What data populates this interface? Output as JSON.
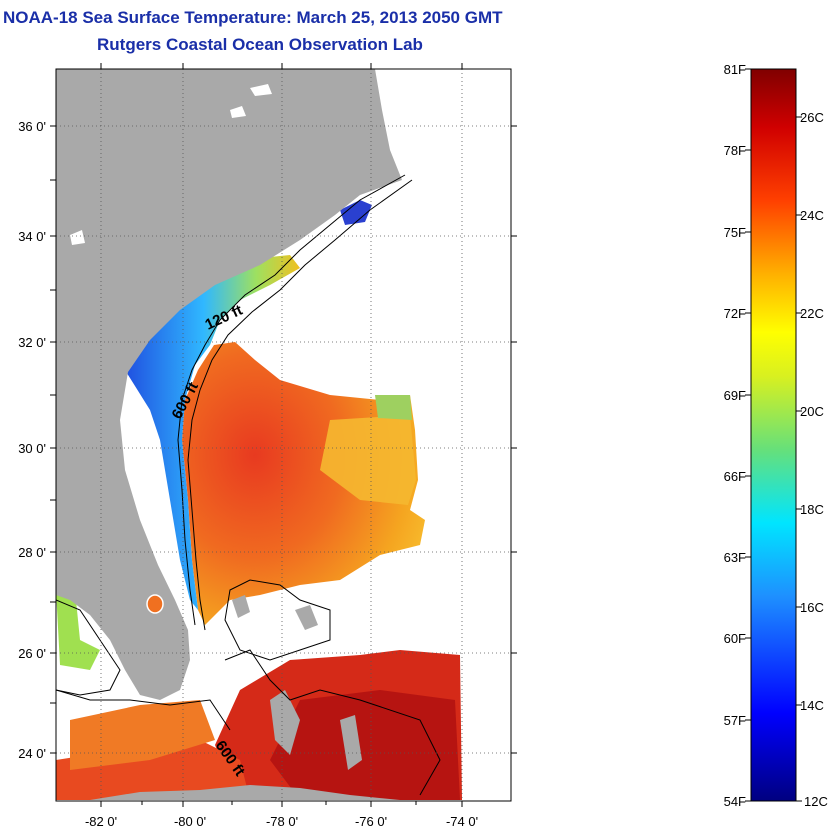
{
  "header": {
    "title": "NOAA-18 Sea Surface Temperature:  March 25, 2013 2050 GMT",
    "subtitle": "Rutgers Coastal Ocean Observation Lab"
  },
  "map": {
    "lat_ticks": [
      "36 0'",
      "34 0'",
      "32 0'",
      "30 0'",
      "28 0'",
      "26 0'",
      "24 0'"
    ],
    "lon_ticks": [
      "-82 0'",
      "-80 0'",
      "-78 0'",
      "-76 0'",
      "-74 0'"
    ],
    "contour_labels": [
      "120 ft",
      "600 ft",
      "600 ft"
    ],
    "colors": {
      "land": "#a9a9a9",
      "cold": "#1e4fe0",
      "warm": "#e8341c"
    }
  },
  "colorbar": {
    "fahrenheit": [
      "81F",
      "78F",
      "75F",
      "72F",
      "69F",
      "66F",
      "63F",
      "60F",
      "57F",
      "54F"
    ],
    "celsius": [
      "26C",
      "24C",
      "22C",
      "20C",
      "18C",
      "16C",
      "14C",
      "12C"
    ]
  }
}
